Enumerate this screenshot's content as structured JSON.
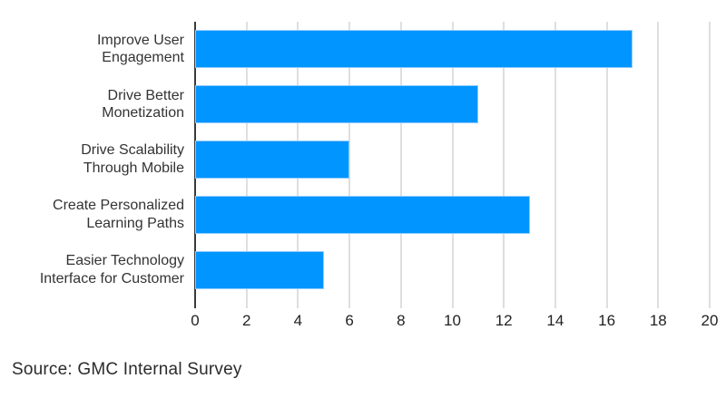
{
  "chart_data": {
    "type": "bar",
    "orientation": "horizontal",
    "title": "",
    "xlabel": "",
    "ylabel": "",
    "categories": [
      "Improve User Engagement",
      "Drive Better Monetization",
      "Drive Scalability Through Mobile",
      "Create Personalized Learning Paths",
      "Easier Technology Interface for Customer"
    ],
    "category_lines": [
      [
        "Improve User",
        "Engagement"
      ],
      [
        "Drive Better",
        "Monetization"
      ],
      [
        "Drive Scalability",
        "Through Mobile"
      ],
      [
        "Create Personalized",
        "Learning Paths"
      ],
      [
        "Easier Technology",
        "Interface for Customer"
      ]
    ],
    "values": [
      17,
      11,
      6,
      13,
      5
    ],
    "xlim": [
      0,
      20
    ],
    "x_ticks": [
      0,
      2,
      4,
      6,
      8,
      10,
      12,
      14,
      16,
      18,
      20
    ],
    "grid": true,
    "legend": false,
    "bar_color": "#0095FF",
    "bar_edge_color": "#8fccff",
    "gridline_color": "#bfbfbf",
    "axis_spine_color": "#3a3a3a",
    "label_color": "#333333",
    "tick_label_color": "#222222"
  },
  "footer": {
    "source_text": "Source: GMC Internal Survey"
  }
}
